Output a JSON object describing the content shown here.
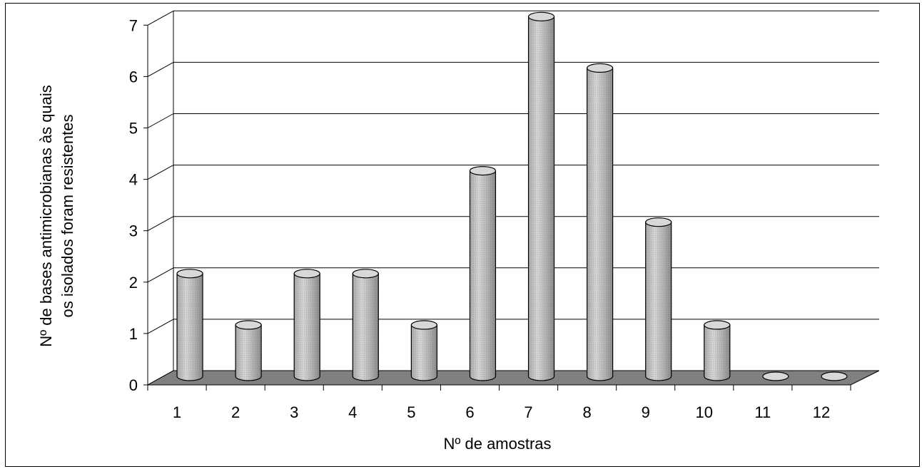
{
  "chart_data": {
    "type": "bar",
    "style": "3d-cylinder",
    "categories": [
      "1",
      "2",
      "3",
      "4",
      "5",
      "6",
      "7",
      "8",
      "9",
      "10",
      "11",
      "12"
    ],
    "values": [
      2,
      1,
      2,
      2,
      1,
      4,
      7,
      6,
      3,
      1,
      0,
      0
    ],
    "xlabel": "Nº de amostras",
    "ylabel_lines": [
      "Nº de bases antimicrobianas às quais",
      "os isolados foram resistentes"
    ],
    "ylim": [
      0,
      7
    ],
    "yticks": [
      "0",
      "1",
      "2",
      "3",
      "4",
      "5",
      "6",
      "7"
    ],
    "grid": true,
    "legend": "none",
    "colors": {
      "bar": "#c8c8c8",
      "floor": "#808080",
      "grid": "#000000"
    }
  }
}
